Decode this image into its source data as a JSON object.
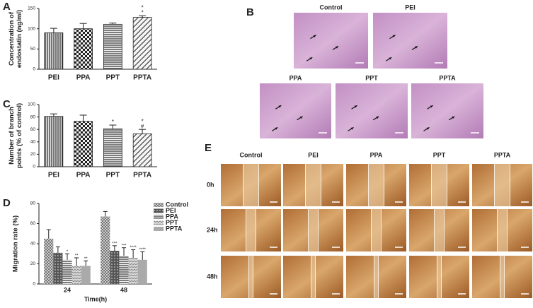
{
  "chart_data": [
    {
      "type": "bar",
      "panel": "A",
      "ylabel": [
        "Concentration of",
        "endostatin (ng/ml)"
      ],
      "categories": [
        "PEI",
        "PPA",
        "PPT",
        "PPTA"
      ],
      "values": [
        90,
        100,
        111,
        128
      ],
      "errors": [
        11,
        13,
        3,
        4
      ],
      "patterns": [
        "vertical",
        "checker",
        "horizontal",
        "diagonal"
      ],
      "annotations": [
        null,
        null,
        null,
        [
          "*",
          "*"
        ]
      ],
      "ylim": [
        0,
        150
      ],
      "yticks": [
        0,
        50,
        100,
        150
      ]
    },
    {
      "type": "bar",
      "panel": "C",
      "ylabel": [
        "Number of branch",
        "points (% of control)"
      ],
      "categories": [
        "PEI",
        "PPA",
        "PPT",
        "PPTA"
      ],
      "values": [
        81,
        73,
        61,
        53
      ],
      "errors": [
        4,
        10,
        6,
        7
      ],
      "patterns": [
        "vertical",
        "checker",
        "horizontal",
        "diagonal"
      ],
      "annotations": [
        null,
        null,
        [
          "*"
        ],
        [
          "*",
          "#"
        ]
      ],
      "ylim": [
        0,
        100
      ],
      "yticks": [
        0,
        20,
        40,
        60,
        80,
        100
      ]
    },
    {
      "type": "grouped_bar",
      "panel": "D",
      "ylabel": [
        "Migration rate (%)"
      ],
      "xlabel": "Time(h)",
      "categories": [
        "24",
        "48"
      ],
      "series": [
        {
          "name": "Control",
          "pattern": "checker-light",
          "values": [
            45,
            67
          ],
          "errors": [
            9,
            5
          ],
          "annotations": [
            null,
            null
          ]
        },
        {
          "name": "PEI",
          "pattern": "grid-dark",
          "values": [
            31,
            33
          ],
          "errors": [
            6,
            5
          ],
          "annotations": [
            null,
            "***"
          ]
        },
        {
          "name": "PPA",
          "pattern": "horizontal",
          "values": [
            24,
            28
          ],
          "errors": [
            6,
            8
          ],
          "annotations": [
            "*",
            "***"
          ]
        },
        {
          "name": "PPT",
          "pattern": "zigzag",
          "values": [
            18,
            26
          ],
          "errors": [
            8,
            8
          ],
          "annotations": [
            "**",
            "****"
          ]
        },
        {
          "name": "PPTA",
          "pattern": "gray",
          "values": [
            18,
            24
          ],
          "errors": [
            5,
            8
          ],
          "annotations": [
            "**",
            "****"
          ]
        }
      ],
      "ylim": [
        0,
        80
      ],
      "yticks": [
        0,
        20,
        40,
        60,
        80
      ]
    }
  ],
  "panel_B": {
    "label": "B",
    "images": [
      "Control",
      "PEI",
      "PPA",
      "PPT",
      "PPTA"
    ]
  },
  "panel_E": {
    "label": "E",
    "columns": [
      "Control",
      "PEI",
      "PPA",
      "PPT",
      "PPTA"
    ],
    "rows": [
      "0h",
      "24h",
      "48h"
    ]
  }
}
